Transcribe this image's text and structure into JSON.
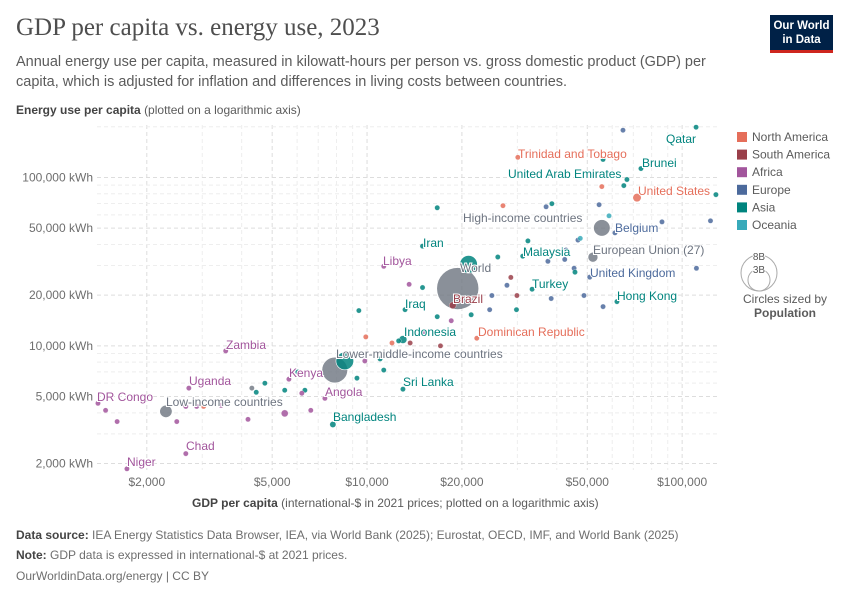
{
  "header": {
    "title": "GDP per capita vs. energy use, 2023",
    "subtitle": "Annual energy use per capita, measured in kilowatt-hours per person vs. gross domestic product (GDP) per capita, which is adjusted for inflation and differences in living costs between countries.",
    "logo_line1": "Our World",
    "logo_line2": "in Data"
  },
  "footer": {
    "source_label": "Data source:",
    "source_text": "IEA Energy Statistics Data Browser, IEA, via World Bank (2025); Eurostat, OECD, IMF, and World Bank (2025)",
    "note_label": "Note:",
    "note_text": "GDP data is expressed in international-$ at 2021 prices.",
    "url": "OurWorldinData.org/energy | CC BY"
  },
  "chart_data": {
    "type": "scatter",
    "title": "GDP per capita vs. energy use, 2023",
    "xlabel_bold": "GDP per capita",
    "xlabel_rest": "(international-$ in 2021 prices; plotted on a logarithmic axis)",
    "ylabel_bold": "Energy use per capita",
    "ylabel_rest": "(plotted on a logarithmic axis)",
    "x_scale": "log",
    "y_scale": "log",
    "xlim": [
      1390,
      129000
    ],
    "ylim": [
      1830,
      205000
    ],
    "grid": true,
    "x_ticks": [
      {
        "value": 2000,
        "label": "$2,000"
      },
      {
        "value": 5000,
        "label": "$5,000"
      },
      {
        "value": 10000,
        "label": "$10,000"
      },
      {
        "value": 20000,
        "label": "$20,000"
      },
      {
        "value": 50000,
        "label": "$50,000"
      },
      {
        "value": 100000,
        "label": "$100,000"
      }
    ],
    "y_ticks": [
      {
        "value": 2000,
        "label": "2,000 kWh"
      },
      {
        "value": 5000,
        "label": "5,000 kWh"
      },
      {
        "value": 10000,
        "label": "10,000 kWh"
      },
      {
        "value": 20000,
        "label": "20,000 kWh"
      },
      {
        "value": 50000,
        "label": "50,000 kWh"
      },
      {
        "value": 100000,
        "label": "100,000 kWh"
      }
    ],
    "legend_position": "right",
    "legend": [
      {
        "name": "North America",
        "color": "#e56e5a"
      },
      {
        "name": "South America",
        "color": "#9a3f4a"
      },
      {
        "name": "Africa",
        "color": "#a2559c"
      },
      {
        "name": "Europe",
        "color": "#4c6a9c"
      },
      {
        "name": "Asia",
        "color": "#00847e"
      },
      {
        "name": "Oceania",
        "color": "#38aaba"
      }
    ],
    "aggregate_color": "#6d7480",
    "size_legend": {
      "big": "8B",
      "small": "3B",
      "big_value": 8000,
      "small_value": 3000,
      "caption": "Circles sized by",
      "variable": "Population"
    },
    "points": [
      {
        "gdp": 110700,
        "energy": 199000,
        "region": "Asia",
        "label": "Qatar"
      },
      {
        "gdp": 30100,
        "energy": 131800,
        "region": "North America",
        "label": "Trinidad and Tobago"
      },
      {
        "gdp": 74000,
        "energy": 113000,
        "region": "Asia",
        "label": "Brunei"
      },
      {
        "gdp": 66800,
        "energy": 97300,
        "region": "Asia",
        "label": "United Arab Emirates"
      },
      {
        "gdp": 71900,
        "energy": 75900,
        "region": "North America",
        "label": "United States",
        "pop": 335
      },
      {
        "gdp": 55600,
        "energy": 50200,
        "region": "Aggregate",
        "label": "High-income countries",
        "pop": 1250
      },
      {
        "gdp": 61200,
        "energy": 46900,
        "region": "Europe",
        "label": "Belgium"
      },
      {
        "gdp": 15000,
        "energy": 39100,
        "region": "Asia",
        "label": "Iran"
      },
      {
        "gdp": 31200,
        "energy": 34100,
        "region": "Asia",
        "label": "Malaysia"
      },
      {
        "gdp": 52100,
        "energy": 33600,
        "region": "Aggregate",
        "label": "European Union (27)",
        "pop": 450
      },
      {
        "gdp": 11300,
        "energy": 29700,
        "region": "Africa",
        "label": "Libya"
      },
      {
        "gdp": 21000,
        "energy": 30500,
        "region": "Asia",
        "pop": 1410
      },
      {
        "gdp": 19400,
        "energy": 21900,
        "region": "Aggregate",
        "label": "World",
        "pop": 8000
      },
      {
        "gdp": 50900,
        "energy": 25600,
        "region": "Europe",
        "label": "United Kingdom"
      },
      {
        "gdp": 33400,
        "energy": 21700,
        "region": "Asia",
        "label": "Turkey"
      },
      {
        "gdp": 18700,
        "energy": 17400,
        "region": "South America",
        "label": "Brazil",
        "pop": 216
      },
      {
        "gdp": 62100,
        "energy": 18300,
        "region": "Asia",
        "label": "Hong Kong"
      },
      {
        "gdp": 13200,
        "energy": 16400,
        "region": "Asia",
        "label": "Iraq"
      },
      {
        "gdp": 13000,
        "energy": 10900,
        "region": "Asia",
        "label": "Indonesia",
        "pop": 277
      },
      {
        "gdp": 22300,
        "energy": 11100,
        "region": "North America",
        "label": "Dominican Republic"
      },
      {
        "gdp": 3560,
        "energy": 9330,
        "region": "Africa",
        "label": "Zambia"
      },
      {
        "gdp": 7900,
        "energy": 7180,
        "region": "Aggregate",
        "label": "Lower-middle-income countries",
        "pop": 3000
      },
      {
        "gdp": 8500,
        "energy": 8130,
        "region": "Asia",
        "pop": 1430
      },
      {
        "gdp": 5650,
        "energy": 6340,
        "region": "Africa",
        "label": "Kenya"
      },
      {
        "gdp": 13000,
        "energy": 5530,
        "region": "Asia",
        "label": "Sri Lanka"
      },
      {
        "gdp": 2720,
        "energy": 5610,
        "region": "Africa",
        "label": "Uganda"
      },
      {
        "gdp": 1400,
        "energy": 4560,
        "region": "Africa",
        "label": "DR Congo"
      },
      {
        "gdp": 2300,
        "energy": 4080,
        "region": "Aggregate",
        "label": "Low-income countries",
        "pop": 700
      },
      {
        "gdp": 7350,
        "energy": 4880,
        "region": "Africa",
        "label": "Angola"
      },
      {
        "gdp": 7790,
        "energy": 3410,
        "region": "Asia",
        "label": "Bangladesh",
        "pop": 172
      },
      {
        "gdp": 2660,
        "energy": 2290,
        "region": "Africa",
        "label": "Chad"
      },
      {
        "gdp": 1730,
        "energy": 1860,
        "region": "Africa",
        "label": "Niger"
      },
      {
        "gdp": 64900,
        "energy": 191000,
        "region": "Europe"
      },
      {
        "gdp": 56100,
        "energy": 128000,
        "region": "Asia"
      },
      {
        "gdp": 55600,
        "energy": 88300,
        "region": "North America"
      },
      {
        "gdp": 65300,
        "energy": 89500,
        "region": "Asia"
      },
      {
        "gdp": 128000,
        "energy": 79100,
        "region": "Asia"
      },
      {
        "gdp": 16700,
        "energy": 66100,
        "region": "Asia"
      },
      {
        "gdp": 27000,
        "energy": 68000,
        "region": "North America"
      },
      {
        "gdp": 37000,
        "energy": 67000,
        "region": "Europe"
      },
      {
        "gdp": 38600,
        "energy": 69900,
        "region": "Asia"
      },
      {
        "gdp": 54500,
        "energy": 68900,
        "region": "Europe"
      },
      {
        "gdp": 58600,
        "energy": 59200,
        "region": "Oceania"
      },
      {
        "gdp": 86300,
        "energy": 54500,
        "region": "Europe"
      },
      {
        "gdp": 123000,
        "energy": 55300,
        "region": "Europe"
      },
      {
        "gdp": 32400,
        "energy": 42000,
        "region": "Asia"
      },
      {
        "gdp": 46700,
        "energy": 42500,
        "region": "Europe"
      },
      {
        "gdp": 47500,
        "energy": 43500,
        "region": "Oceania"
      },
      {
        "gdp": 42800,
        "energy": 37100,
        "region": "Europe"
      },
      {
        "gdp": 37500,
        "energy": 31800,
        "region": "Europe"
      },
      {
        "gdp": 42400,
        "energy": 32600,
        "region": "Europe"
      },
      {
        "gdp": 45400,
        "energy": 28900,
        "region": "Europe"
      },
      {
        "gdp": 45700,
        "energy": 27400,
        "region": "Asia"
      },
      {
        "gdp": 111000,
        "energy": 28900,
        "region": "Europe"
      },
      {
        "gdp": 26000,
        "energy": 33700,
        "region": "Asia"
      },
      {
        "gdp": 27800,
        "energy": 22900,
        "region": "Europe"
      },
      {
        "gdp": 28600,
        "energy": 25500,
        "region": "South America"
      },
      {
        "gdp": 29900,
        "energy": 19900,
        "region": "South America"
      },
      {
        "gdp": 24900,
        "energy": 19900,
        "region": "Europe"
      },
      {
        "gdp": 38400,
        "energy": 19100,
        "region": "Europe"
      },
      {
        "gdp": 48800,
        "energy": 19900,
        "region": "Europe"
      },
      {
        "gdp": 56100,
        "energy": 17100,
        "region": "Europe"
      },
      {
        "gdp": 24500,
        "energy": 16400,
        "region": "Europe"
      },
      {
        "gdp": 29800,
        "energy": 16400,
        "region": "Asia"
      },
      {
        "gdp": 21400,
        "energy": 15300,
        "region": "Asia"
      },
      {
        "gdp": 16700,
        "energy": 14900,
        "region": "Asia"
      },
      {
        "gdp": 18500,
        "energy": 14100,
        "region": "Africa"
      },
      {
        "gdp": 13600,
        "energy": 23200,
        "region": "Africa"
      },
      {
        "gdp": 15000,
        "energy": 22200,
        "region": "Asia"
      },
      {
        "gdp": 9420,
        "energy": 16200,
        "region": "Asia"
      },
      {
        "gdp": 9910,
        "energy": 11300,
        "region": "North America"
      },
      {
        "gdp": 15100,
        "energy": 12100,
        "region": "Africa"
      },
      {
        "gdp": 12600,
        "energy": 10700,
        "region": "Asia"
      },
      {
        "gdp": 13700,
        "energy": 10400,
        "region": "South America"
      },
      {
        "gdp": 12000,
        "energy": 10400,
        "region": "North America"
      },
      {
        "gdp": 17100,
        "energy": 10000,
        "region": "South America"
      },
      {
        "gdp": 11000,
        "energy": 8360,
        "region": "Asia"
      },
      {
        "gdp": 9840,
        "energy": 8130,
        "region": "Africa"
      },
      {
        "gdp": 9290,
        "energy": 6430,
        "region": "Asia"
      },
      {
        "gdp": 11300,
        "energy": 7180,
        "region": "Asia"
      },
      {
        "gdp": 6030,
        "energy": 6990,
        "region": "Asia"
      },
      {
        "gdp": 4740,
        "energy": 6000,
        "region": "Asia"
      },
      {
        "gdp": 4310,
        "energy": 5610,
        "region": "Aggregate"
      },
      {
        "gdp": 4450,
        "energy": 5300,
        "region": "Asia"
      },
      {
        "gdp": 5480,
        "energy": 5450,
        "region": "Asia",
        "pop": 120
      },
      {
        "gdp": 6350,
        "energy": 5450,
        "region": "Asia"
      },
      {
        "gdp": 6210,
        "energy": 5230,
        "region": "Africa"
      },
      {
        "gdp": 6630,
        "energy": 4140,
        "region": "Africa"
      },
      {
        "gdp": 5480,
        "energy": 3970,
        "region": "Africa",
        "pop": 220
      },
      {
        "gdp": 4190,
        "energy": 3660,
        "region": "Africa"
      },
      {
        "gdp": 3440,
        "energy": 4430,
        "region": "Africa"
      },
      {
        "gdp": 2880,
        "energy": 4370,
        "region": "Africa"
      },
      {
        "gdp": 2660,
        "energy": 4370,
        "region": "Africa"
      },
      {
        "gdp": 3030,
        "energy": 4370,
        "region": "North America"
      },
      {
        "gdp": 2490,
        "energy": 3550,
        "region": "Africa"
      },
      {
        "gdp": 1610,
        "energy": 3550,
        "region": "Africa"
      },
      {
        "gdp": 1480,
        "energy": 4140,
        "region": "Africa"
      }
    ]
  }
}
